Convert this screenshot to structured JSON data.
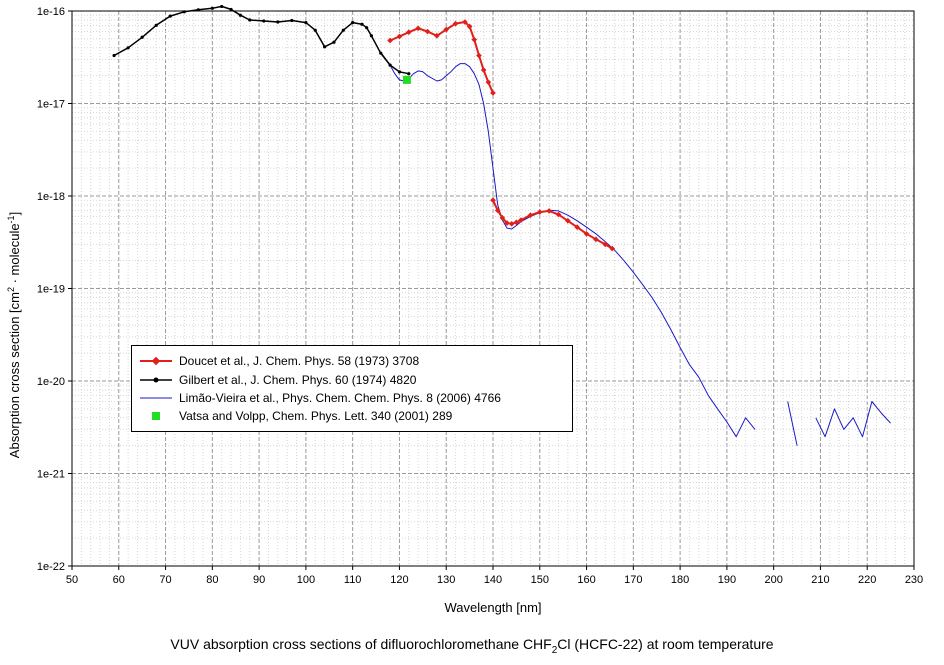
{
  "chart_data": {
    "type": "line",
    "xlabel": "Wavelength [nm]",
    "ylabel_parts": [
      "Absorption cross section [cm",
      "2",
      " · molecule",
      "-1",
      "]"
    ],
    "xlim": [
      50,
      230
    ],
    "ylim": [
      1e-22,
      1e-16
    ],
    "y_scale": "log",
    "grid": true,
    "legend_position": "lower-left",
    "x_ticks": [
      "50",
      "60",
      "70",
      "80",
      "90",
      "100",
      "110",
      "120",
      "130",
      "140",
      "150",
      "160",
      "170",
      "180",
      "190",
      "200",
      "210",
      "220",
      "230"
    ],
    "y_ticks": [
      "1e-16",
      "1e-17",
      "1e-18",
      "1e-19",
      "1e-20",
      "1e-21",
      "1e-22"
    ],
    "series": [
      {
        "name": "Doucet et al., J. Chem. Phys. 58 (1973) 3708",
        "color": "#e0201a",
        "marker": "diamond",
        "x": [
          118,
          120,
          122,
          124,
          126,
          128,
          130,
          132,
          134,
          135,
          136,
          137,
          138,
          139,
          140
        ],
        "y": [
          4.8e-17,
          5.3e-17,
          5.9e-17,
          6.5e-17,
          6e-17,
          5.4e-17,
          6.3e-17,
          7.3e-17,
          7.6e-17,
          6.8e-17,
          4.9e-17,
          3.3e-17,
          2.3e-17,
          1.7e-17,
          1.3e-17
        ],
        "x2": [
          140,
          141,
          142,
          143,
          144,
          145,
          146,
          148,
          150,
          152,
          154,
          156,
          158,
          160,
          162,
          164,
          165.5
        ],
        "y2": [
          9e-19,
          7e-19,
          5.8e-19,
          5.1e-19,
          5e-19,
          5.2e-19,
          5.5e-19,
          6.2e-19,
          6.7e-19,
          6.9e-19,
          6.3e-19,
          5.4e-19,
          4.6e-19,
          3.9e-19,
          3.4e-19,
          3e-19,
          2.7e-19
        ]
      },
      {
        "name": "Gilbert et al., J. Chem. Phys. 60 (1974) 4820",
        "color": "#000000",
        "marker": "dot",
        "x": [
          59,
          62,
          65,
          68,
          71,
          74,
          77,
          80,
          82,
          84,
          86,
          88,
          91,
          94,
          97,
          100,
          102,
          104,
          106,
          108,
          110,
          112,
          113,
          114,
          116,
          118,
          120,
          122
        ],
        "y": [
          3.3e-17,
          4e-17,
          5.2e-17,
          7e-17,
          8.8e-17,
          9.8e-17,
          1.03e-16,
          1.07e-16,
          1.12e-16,
          1.04e-16,
          9e-17,
          8e-17,
          7.8e-17,
          7.6e-17,
          7.9e-17,
          7.5e-17,
          6.2e-17,
          4.1e-17,
          4.6e-17,
          6.2e-17,
          7.5e-17,
          7.2e-17,
          6.6e-17,
          5.4e-17,
          3.5e-17,
          2.6e-17,
          2.2e-17,
          2.1e-17
        ]
      },
      {
        "name": "Limão-Vieira et al., Phys. Chem. Chem. Phys. 8 (2006) 4766",
        "color": "#1a1acc",
        "marker": "none",
        "x": [
          116,
          118,
          119,
          120,
          121,
          122,
          123,
          124,
          125,
          126,
          128,
          129,
          130,
          131,
          132,
          133,
          134,
          135,
          136,
          137,
          138,
          139,
          140,
          141,
          142,
          143,
          144,
          145,
          146,
          148,
          150,
          152,
          154,
          156,
          158,
          160,
          162,
          164,
          166,
          168,
          170,
          172,
          174,
          176,
          178,
          180,
          182,
          184,
          186,
          188,
          190,
          192,
          194,
          196,
          198,
          203,
          205,
          207,
          209,
          211,
          213,
          215,
          217,
          219,
          221,
          223,
          225
        ],
        "y": [
          3.6e-17,
          2.6e-17,
          2.1e-17,
          1.8e-17,
          1.75e-17,
          1.85e-17,
          2.1e-17,
          2.25e-17,
          2.2e-17,
          2e-17,
          1.75e-17,
          1.8e-17,
          2e-17,
          2.2e-17,
          2.5e-17,
          2.7e-17,
          2.7e-17,
          2.5e-17,
          2.1e-17,
          1.6e-17,
          1e-17,
          5e-18,
          2e-18,
          8e-19,
          5.5e-19,
          4.5e-19,
          4.4e-19,
          4.8e-19,
          5.3e-19,
          6e-19,
          6.6e-19,
          7e-19,
          6.9e-19,
          6.2e-19,
          5.4e-19,
          4.6e-19,
          3.9e-19,
          3.2e-19,
          2.6e-19,
          2e-19,
          1.5e-19,
          1.1e-19,
          8e-20,
          5.5e-20,
          3.6e-20,
          2.3e-20,
          1.5e-20,
          1.1e-20,
          7e-21,
          5e-21,
          3.6e-21,
          2.5e-21,
          4e-21,
          3e-21,
          null,
          6e-21,
          2e-21,
          null,
          4e-21,
          2.5e-21,
          5e-21,
          3e-21,
          4e-21,
          2.5e-21,
          6e-21,
          4.5e-21,
          3.5e-21
        ]
      },
      {
        "name": "Vatsa and Volpp, Chem. Phys. Lett. 340 (2001) 289",
        "color": "#22dd22",
        "marker": "square",
        "x": [
          121.6
        ],
        "y": [
          1.8e-17
        ]
      }
    ]
  },
  "caption_parts": [
    "VUV absorption cross sections of difluorochloromethane CHF",
    "2",
    "Cl (HCFC-22) at room temperature"
  ]
}
